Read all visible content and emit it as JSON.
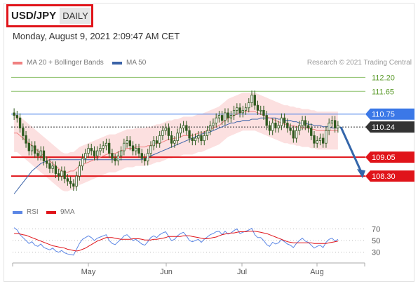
{
  "header": {
    "pair": "USD/JPY",
    "period": "DAILY",
    "datetime": "Monday, August 9, 2021 2:09:47 AM CET"
  },
  "legend": {
    "ma20_label": "MA 20 + Bollinger Bands",
    "ma50_label": "MA 50",
    "rsi_label": "RSI",
    "ma9_label": "9MA",
    "copyright": "Research © 2021 Trading Central"
  },
  "colors": {
    "ma20": "#f08080",
    "bollinger": "#fbd5d5",
    "ma50": "#3b63a8",
    "candle": "#2f5a1f",
    "resistance_blue": "#3b78e7",
    "support_red": "#e0141a",
    "target_green": "#8cc06a",
    "rsi": "#5b86e5",
    "rsi_ma": "#e0141a",
    "arrow": "#3466aa"
  },
  "chart_data": [
    {
      "type": "candlestick",
      "title": "USD/JPY",
      "ylim": [
        107.5,
        112.6
      ],
      "x_tick_labels": [
        "May",
        "Jun",
        "Jul",
        "Aug"
      ],
      "levels": [
        {
          "label": "112.20",
          "value": 112.2,
          "color": "#8cc06a"
        },
        {
          "label": "111.65",
          "value": 111.65,
          "color": "#8cc06a"
        },
        {
          "label": "110.75",
          "value": 110.75,
          "color": "#3b78e7"
        },
        {
          "label": "110.24",
          "value": 110.24,
          "color": "#333333"
        },
        {
          "label": "109.05",
          "value": 109.05,
          "color": "#e0141a"
        },
        {
          "label": "108.30",
          "value": 108.3,
          "color": "#e0141a"
        }
      ],
      "close": [
        110.7,
        110.6,
        110.2,
        109.9,
        109.6,
        109.3,
        109.5,
        109.2,
        109.1,
        109.3,
        108.9,
        108.8,
        108.6,
        108.7,
        108.4,
        108.3,
        108.5,
        108.2,
        108.1,
        108.0,
        107.9,
        108.3,
        108.7,
        109.0,
        109.2,
        109.4,
        109.3,
        109.1,
        109.3,
        109.4,
        109.5,
        109.6,
        109.2,
        109.0,
        108.9,
        109.1,
        109.3,
        109.6,
        109.7,
        109.5,
        109.3,
        109.4,
        109.2,
        109.0,
        108.9,
        109.2,
        109.5,
        109.7,
        109.6,
        109.9,
        110.1,
        110.2,
        109.9,
        109.6,
        109.7,
        110.0,
        110.2,
        110.3,
        110.1,
        109.8,
        109.7,
        109.8,
        109.9,
        109.7,
        109.9,
        110.1,
        110.3,
        110.4,
        110.6,
        110.7,
        110.5,
        110.8,
        110.6,
        110.7,
        110.9,
        111.0,
        110.8,
        110.9,
        111.0,
        111.2,
        111.5,
        111.1,
        110.9,
        110.9,
        110.7,
        110.3,
        110.1,
        110.4,
        110.2,
        110.3,
        110.6,
        110.4,
        110.2,
        110.1,
        109.8,
        110.1,
        110.3,
        110.5,
        110.3,
        110.2,
        109.9,
        109.6,
        109.7,
        109.8,
        109.6,
        110.1,
        110.4,
        110.5,
        110.2,
        110.3
      ],
      "ma20": [
        110.0,
        110.0,
        109.9,
        109.8,
        109.7,
        109.6,
        109.5,
        109.4,
        109.3,
        109.2,
        109.1,
        109.0,
        108.9,
        108.8,
        108.7,
        108.6,
        108.5,
        108.45,
        108.45,
        108.5,
        108.5,
        108.6,
        108.7,
        108.75,
        108.8,
        108.85,
        108.9,
        108.95,
        109.0,
        109.05,
        109.1,
        109.15,
        109.2,
        109.2,
        109.2,
        109.25,
        109.3,
        109.35,
        109.4,
        109.4,
        109.4,
        109.45,
        109.45,
        109.45,
        109.45,
        109.5,
        109.5,
        109.55,
        109.6,
        109.6,
        109.65,
        109.7,
        109.75,
        109.75,
        109.8,
        109.8,
        109.85,
        109.9,
        109.9,
        109.9,
        109.9,
        109.95,
        110.0,
        110.0,
        110.05,
        110.1,
        110.15,
        110.2,
        110.25,
        110.3,
        110.4,
        110.5,
        110.6,
        110.65,
        110.7,
        110.75,
        110.8,
        110.85,
        110.85,
        110.85,
        110.85,
        110.85,
        110.8,
        110.75,
        110.7,
        110.65,
        110.6,
        110.55,
        110.5,
        110.45,
        110.4,
        110.35,
        110.35,
        110.3,
        110.3,
        110.25,
        110.25,
        110.2,
        110.2,
        110.2,
        110.15,
        110.15,
        110.1,
        110.1,
        110.1,
        110.1,
        110.1,
        110.1,
        110.1,
        110.1
      ],
      "ma50": [
        107.6,
        107.75,
        107.9,
        108.05,
        108.2,
        108.35,
        108.5,
        108.6,
        108.7,
        108.8,
        108.85,
        108.9,
        108.95,
        108.95,
        108.95,
        108.95,
        108.95,
        108.95,
        108.95,
        108.95,
        108.95,
        108.95,
        108.95,
        108.95,
        108.95,
        108.95,
        108.95,
        108.95,
        108.95,
        108.95,
        108.95,
        108.95,
        108.95,
        108.95,
        108.95,
        108.95,
        108.95,
        108.95,
        108.95,
        108.95,
        108.95,
        108.95,
        108.95,
        108.95,
        109.0,
        109.05,
        109.1,
        109.15,
        109.2,
        109.25,
        109.3,
        109.35,
        109.4,
        109.45,
        109.5,
        109.55,
        109.6,
        109.65,
        109.7,
        109.75,
        109.8,
        109.85,
        109.9,
        109.95,
        110.0,
        110.0,
        110.05,
        110.1,
        110.15,
        110.2,
        110.25,
        110.3,
        110.35,
        110.4,
        110.4,
        110.45,
        110.45,
        110.5,
        110.5,
        110.5,
        110.55,
        110.55,
        110.55,
        110.6,
        110.6,
        110.6,
        110.6,
        110.6,
        110.6,
        110.55,
        110.55,
        110.5,
        110.5,
        110.5,
        110.45,
        110.45,
        110.4,
        110.4,
        110.4,
        110.35,
        110.35,
        110.3,
        110.3,
        110.3,
        110.25,
        110.25,
        110.25,
        110.2,
        110.2,
        110.2
      ],
      "band_width": 0.75,
      "forecast_arrow": {
        "from": 110.24,
        "to": 108.3
      }
    },
    {
      "type": "line",
      "title": "RSI",
      "ylim": [
        20,
        80
      ],
      "y_tick_labels": [
        "70",
        "50",
        "30"
      ],
      "series": [
        {
          "name": "RSI",
          "values": [
            72,
            68,
            60,
            55,
            50,
            45,
            48,
            42,
            40,
            44,
            38,
            36,
            34,
            37,
            32,
            30,
            33,
            29,
            27,
            26,
            25,
            35,
            45,
            52,
            55,
            58,
            55,
            50,
            54,
            56,
            58,
            60,
            50,
            45,
            43,
            48,
            52,
            58,
            60,
            55,
            50,
            52,
            48,
            44,
            42,
            48,
            55,
            58,
            55,
            60,
            63,
            65,
            57,
            50,
            52,
            58,
            62,
            64,
            58,
            50,
            48,
            50,
            52,
            47,
            52,
            56,
            60,
            62,
            65,
            66,
            60,
            66,
            61,
            63,
            67,
            70,
            62,
            64,
            66,
            68,
            71,
            60,
            55,
            55,
            50,
            43,
            40,
            47,
            44,
            46,
            52,
            48,
            44,
            42,
            38,
            45,
            50,
            54,
            49,
            47,
            42,
            37,
            40,
            42,
            38,
            47,
            52,
            54,
            49,
            52
          ]
        },
        {
          "name": "9MA",
          "values": [
            62,
            62,
            61,
            60,
            59,
            57,
            55,
            53,
            51,
            49,
            47,
            45,
            43,
            41,
            40,
            39,
            38,
            37,
            35,
            34,
            33,
            32,
            33,
            35,
            37,
            40,
            43,
            46,
            49,
            51,
            53,
            55,
            55,
            55,
            54,
            53,
            52,
            52,
            52,
            52,
            53,
            53,
            53,
            52,
            51,
            51,
            51,
            52,
            52,
            53,
            54,
            55,
            57,
            57,
            57,
            57,
            57,
            58,
            58,
            58,
            57,
            56,
            55,
            54,
            53,
            53,
            54,
            55,
            56,
            58,
            60,
            61,
            62,
            63,
            63,
            64,
            65,
            65,
            65,
            66,
            66,
            66,
            65,
            64,
            63,
            62,
            60,
            58,
            56,
            54,
            52,
            50,
            48,
            47,
            46,
            46,
            46,
            46,
            46,
            46,
            46,
            45,
            45,
            45,
            45,
            45,
            46,
            47,
            48,
            49
          ]
        }
      ]
    }
  ]
}
